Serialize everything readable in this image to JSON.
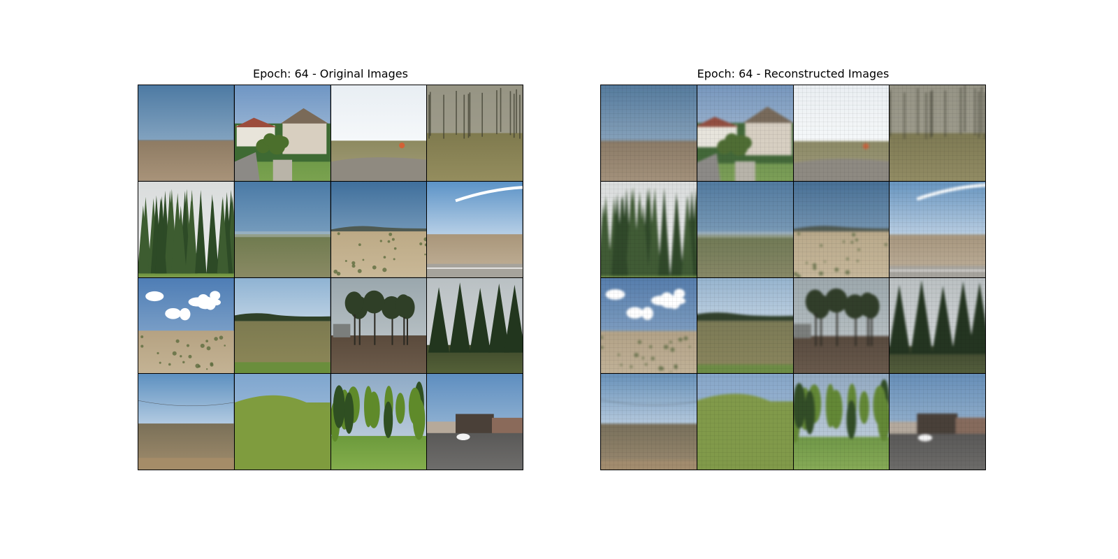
{
  "figure": {
    "left_title": "Epoch: 64 - Original Images",
    "right_title": "Epoch: 64 - Reconstructed Images"
  },
  "tiles": [
    {
      "scene": "open-field",
      "sky": [
        "#4d7aa3",
        "#a9c0d4"
      ],
      "horizon": 0.58,
      "ground": [
        "#8e7b63",
        "#a89379"
      ],
      "features": [
        "distant-line"
      ]
    },
    {
      "scene": "houses",
      "sky": [
        "#6f96c4",
        "#c3d3e3"
      ],
      "horizon": 0.45,
      "ground": [
        "#5f8e3d",
        "#7aa24f"
      ],
      "features": [
        "houses",
        "trees-small",
        "driveway"
      ]
    },
    {
      "scene": "bright-field",
      "sky": [
        "#e8eef3",
        "#ffffff"
      ],
      "horizon": 0.58,
      "ground": [
        "#8d8a60",
        "#a49d7a"
      ],
      "features": [
        "road-foreground",
        "sun-flare"
      ]
    },
    {
      "scene": "bare-trees",
      "sky": [
        "#c9c9c1",
        "#e3e1d8"
      ],
      "horizon": 0.5,
      "ground": [
        "#7f7a4e",
        "#948d5e"
      ],
      "features": [
        "bare-trees"
      ]
    },
    {
      "scene": "dense-forest",
      "sky": [
        "#d9dcdc",
        "#eeeeee"
      ],
      "horizon": 0.95,
      "ground": [
        "#6a8f3e",
        "#7fa04a"
      ],
      "features": [
        "forest-dark"
      ]
    },
    {
      "scene": "green-plain",
      "sky": [
        "#4a7aa6",
        "#9ab8d0"
      ],
      "horizon": 0.55,
      "ground": [
        "#6e7a4e",
        "#8a8a64"
      ],
      "features": [
        "haze"
      ]
    },
    {
      "scene": "dry-hills",
      "sky": [
        "#3f6f9c",
        "#9fbad0"
      ],
      "horizon": 0.5,
      "ground": [
        "#bca985",
        "#c9b897"
      ],
      "features": [
        "hill-line",
        "shrubs"
      ]
    },
    {
      "scene": "bright-road",
      "sky": [
        "#5c93c7",
        "#ffffff"
      ],
      "horizon": 0.55,
      "ground": [
        "#a9967a",
        "#c3b39a"
      ],
      "features": [
        "contrail",
        "road-right"
      ]
    },
    {
      "scene": "cloudy-plain",
      "sky": [
        "#4e7db5",
        "#9ab7d4"
      ],
      "horizon": 0.55,
      "ground": [
        "#b5a282",
        "#c4b394"
      ],
      "features": [
        "clouds",
        "shrubs"
      ]
    },
    {
      "scene": "tree-line",
      "sky": [
        "#8fb3d3",
        "#f3f6f8"
      ],
      "horizon": 0.45,
      "ground": [
        "#7c7a50",
        "#8e8858"
      ],
      "features": [
        "tree-line",
        "grass-front"
      ]
    },
    {
      "scene": "dark-trees",
      "sky": [
        "#9aa7ad",
        "#c6cdd0"
      ],
      "horizon": 0.6,
      "ground": [
        "#5a4a3c",
        "#6d5c4b"
      ],
      "features": [
        "tall-trees",
        "shed"
      ]
    },
    {
      "scene": "pines",
      "sky": [
        "#b9c0c3",
        "#d9dcdd"
      ],
      "horizon": 0.7,
      "ground": [
        "#3f4a2c",
        "#556138"
      ],
      "features": [
        "pines-big"
      ]
    },
    {
      "scene": "hazy-plain",
      "sky": [
        "#5d90c0",
        "#ffffff"
      ],
      "horizon": 0.52,
      "ground": [
        "#7a7058",
        "#a08c6c"
      ],
      "features": [
        "wire",
        "dirt-front"
      ]
    },
    {
      "scene": "green-hill",
      "sky": [
        "#7fa6cf",
        "#b5cbe0"
      ],
      "horizon": 0.3,
      "ground": [
        "#7d9a3e",
        "#98ae52"
      ],
      "features": [
        "hill-slope"
      ]
    },
    {
      "scene": "green-trees",
      "sky": [
        "#8eaac6",
        "#cdd9e3"
      ],
      "horizon": 0.65,
      "ground": [
        "#6c9a3c",
        "#84ae4c"
      ],
      "features": [
        "bright-trees"
      ]
    },
    {
      "scene": "street",
      "sky": [
        "#5e8ec0",
        "#b7cde0"
      ],
      "horizon": 0.55,
      "ground": [
        "#565554",
        "#6e6d6b"
      ],
      "features": [
        "buildings",
        "car"
      ]
    }
  ]
}
